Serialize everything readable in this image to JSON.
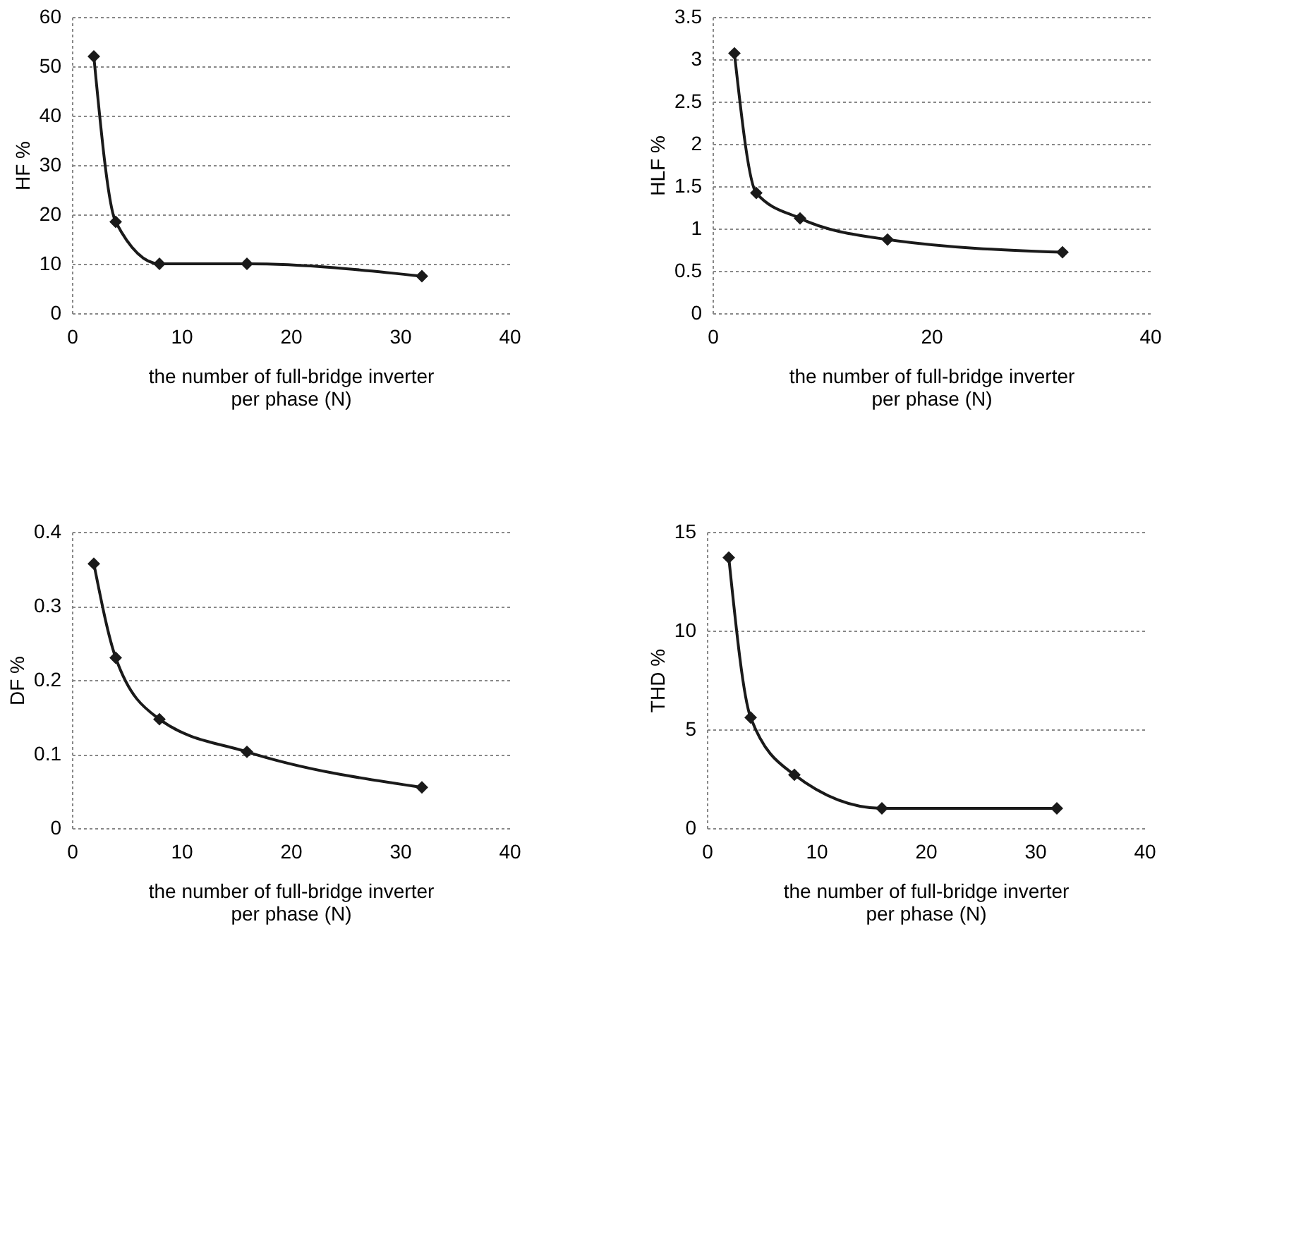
{
  "chart_data": [
    {
      "type": "line",
      "x": [
        2,
        4,
        8,
        16,
        32
      ],
      "series": [
        {
          "color": "#1a1a1a",
          "values": [
            52,
            18.5,
            10,
            10,
            7.5
          ]
        }
      ],
      "xlim": [
        0,
        40
      ],
      "xticks": [
        0,
        10,
        20,
        30,
        40
      ],
      "ylim": [
        0,
        60
      ],
      "yticks": [
        0,
        10,
        20,
        30,
        40,
        50,
        60
      ],
      "grid": "y",
      "marker": "diamond",
      "line_style": "solid",
      "ylabel": "HF %",
      "xlabel": "the number of full-bridge inverter\nper phase (N)"
    },
    {
      "type": "line",
      "x": [
        2,
        4,
        8,
        16,
        32
      ],
      "series": [
        {
          "color": "#1a1a1a",
          "values": [
            3.07,
            1.42,
            1.12,
            0.87,
            0.72
          ]
        }
      ],
      "xlim": [
        0,
        40
      ],
      "xticks": [
        0,
        20,
        40
      ],
      "ylim": [
        0,
        3.5
      ],
      "yticks": [
        0,
        0.5,
        1,
        1.5,
        2,
        2.5,
        3,
        3.5
      ],
      "grid": "y",
      "marker": "diamond",
      "line_style": "solid",
      "ylabel": "HLF %",
      "xlabel": "the number of full-bridge inverter\nper phase (N)"
    },
    {
      "type": "line",
      "x": [
        2,
        4,
        8,
        16,
        32
      ],
      "series": [
        {
          "color": "#1a1a1a",
          "values": [
            0.357,
            0.23,
            0.147,
            0.103,
            0.055
          ]
        }
      ],
      "xlim": [
        0,
        40
      ],
      "xticks": [
        0,
        10,
        20,
        30,
        40
      ],
      "ylim": [
        0,
        0.4
      ],
      "yticks": [
        0,
        0.1,
        0.2,
        0.3,
        0.4
      ],
      "grid": "y",
      "marker": "diamond",
      "line_style": "solid",
      "ylabel": "DF %",
      "xlabel": "the number of full-bridge inverter\nper phase (N)"
    },
    {
      "type": "line",
      "x": [
        2,
        4,
        8,
        16,
        32
      ],
      "series": [
        {
          "color": "#1a1a1a",
          "values": [
            13.7,
            5.6,
            2.7,
            1.0,
            1.0
          ]
        }
      ],
      "xlim": [
        0,
        40
      ],
      "xticks": [
        0,
        10,
        20,
        30,
        40
      ],
      "ylim": [
        0,
        15
      ],
      "yticks": [
        0,
        5,
        10,
        15
      ],
      "grid": "y",
      "marker": "diamond",
      "line_style": "solid",
      "ylabel": "THD %",
      "xlabel": "the number of full-bridge inverter\nper phase (N)"
    }
  ]
}
